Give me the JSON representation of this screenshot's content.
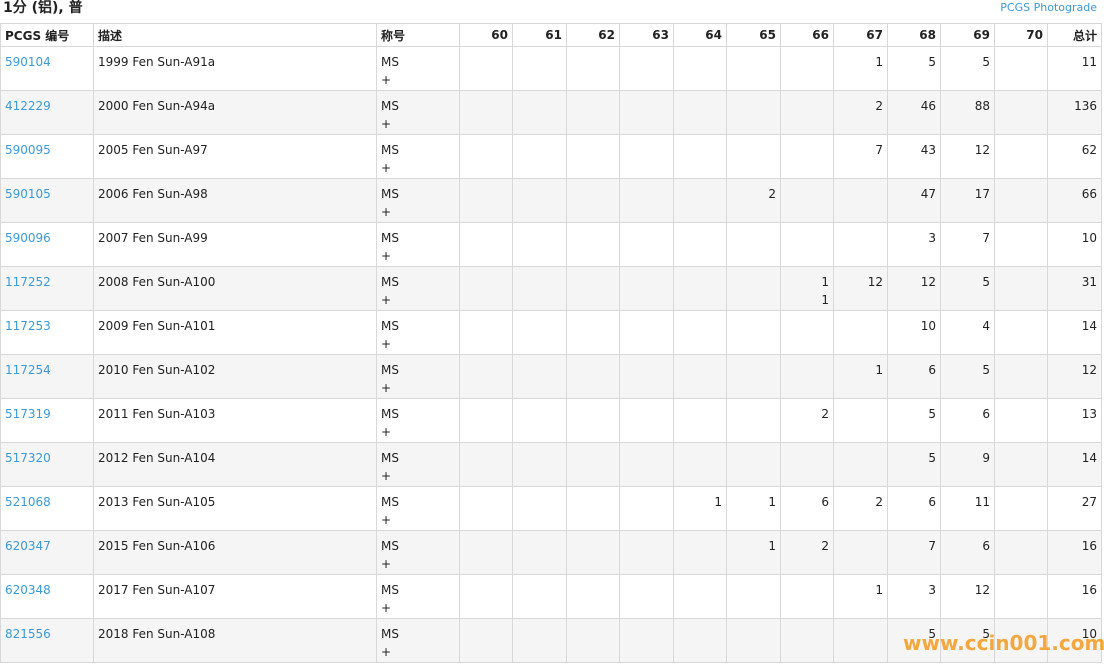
{
  "header": {
    "title": "1分 (铝), 普",
    "link": "PCGS Photograde"
  },
  "table": {
    "columns": [
      "PCGS 编号",
      "描述",
      "称号",
      "60",
      "61",
      "62",
      "63",
      "64",
      "65",
      "66",
      "67",
      "68",
      "69",
      "70",
      "总计"
    ],
    "rows": [
      {
        "id": "590104",
        "desc": "1999 Fen Sun-A91a",
        "designation": [
          "MS",
          "+"
        ],
        "ms": [
          null,
          null,
          null,
          null,
          null,
          null,
          null,
          1,
          5,
          5,
          null
        ],
        "total": 11
      },
      {
        "id": "412229",
        "desc": "2000 Fen Sun-A94a",
        "designation": [
          "MS",
          "+"
        ],
        "ms": [
          null,
          null,
          null,
          null,
          null,
          null,
          null,
          2,
          46,
          88,
          null
        ],
        "total": 136
      },
      {
        "id": "590095",
        "desc": "2005 Fen Sun-A97",
        "designation": [
          "MS",
          "+"
        ],
        "ms": [
          null,
          null,
          null,
          null,
          null,
          null,
          null,
          7,
          43,
          12,
          null
        ],
        "total": 62
      },
      {
        "id": "590105",
        "desc": "2006 Fen Sun-A98",
        "designation": [
          "MS",
          "+"
        ],
        "ms": [
          null,
          null,
          null,
          null,
          null,
          2,
          null,
          null,
          47,
          17,
          null
        ],
        "total": 66
      },
      {
        "id": "590096",
        "desc": "2007 Fen Sun-A99",
        "designation": [
          "MS",
          "+"
        ],
        "ms": [
          null,
          null,
          null,
          null,
          null,
          null,
          null,
          null,
          3,
          7,
          null
        ],
        "total": 10
      },
      {
        "id": "117252",
        "desc": "2008 Fen Sun-A100",
        "designation": [
          "MS",
          "+"
        ],
        "ms": [
          null,
          null,
          null,
          null,
          null,
          null,
          1,
          12,
          12,
          5,
          null
        ],
        "plus": [
          null,
          null,
          null,
          null,
          null,
          null,
          1,
          null,
          null,
          null,
          null
        ],
        "total": 31
      },
      {
        "id": "117253",
        "desc": "2009 Fen Sun-A101",
        "designation": [
          "MS",
          "+"
        ],
        "ms": [
          null,
          null,
          null,
          null,
          null,
          null,
          null,
          null,
          10,
          4,
          null
        ],
        "total": 14
      },
      {
        "id": "117254",
        "desc": "2010 Fen Sun-A102",
        "designation": [
          "MS",
          "+"
        ],
        "ms": [
          null,
          null,
          null,
          null,
          null,
          null,
          null,
          1,
          6,
          5,
          null
        ],
        "total": 12
      },
      {
        "id": "517319",
        "desc": "2011 Fen Sun-A103",
        "designation": [
          "MS",
          "+"
        ],
        "ms": [
          null,
          null,
          null,
          null,
          null,
          null,
          2,
          null,
          5,
          6,
          null
        ],
        "total": 13
      },
      {
        "id": "517320",
        "desc": "2012 Fen Sun-A104",
        "designation": [
          "MS",
          "+"
        ],
        "ms": [
          null,
          null,
          null,
          null,
          null,
          null,
          null,
          null,
          5,
          9,
          null
        ],
        "total": 14
      },
      {
        "id": "521068",
        "desc": "2013 Fen Sun-A105",
        "designation": [
          "MS",
          "+"
        ],
        "ms": [
          null,
          null,
          null,
          null,
          1,
          1,
          6,
          2,
          6,
          11,
          null
        ],
        "total": 27
      },
      {
        "id": "620347",
        "desc": "2015 Fen Sun-A106",
        "designation": [
          "MS",
          "+"
        ],
        "ms": [
          null,
          null,
          null,
          null,
          null,
          1,
          2,
          null,
          7,
          6,
          null
        ],
        "total": 16
      },
      {
        "id": "620348",
        "desc": "2017 Fen Sun-A107",
        "designation": [
          "MS",
          "+"
        ],
        "ms": [
          null,
          null,
          null,
          null,
          null,
          null,
          null,
          1,
          3,
          12,
          null
        ],
        "total": 16
      },
      {
        "id": "821556",
        "desc": "2018 Fen Sun-A108",
        "designation": [
          "MS",
          "+"
        ],
        "ms": [
          null,
          null,
          null,
          null,
          null,
          null,
          null,
          null,
          5,
          5,
          null
        ],
        "total": 10
      }
    ]
  },
  "watermark": "www.ccin001.com"
}
